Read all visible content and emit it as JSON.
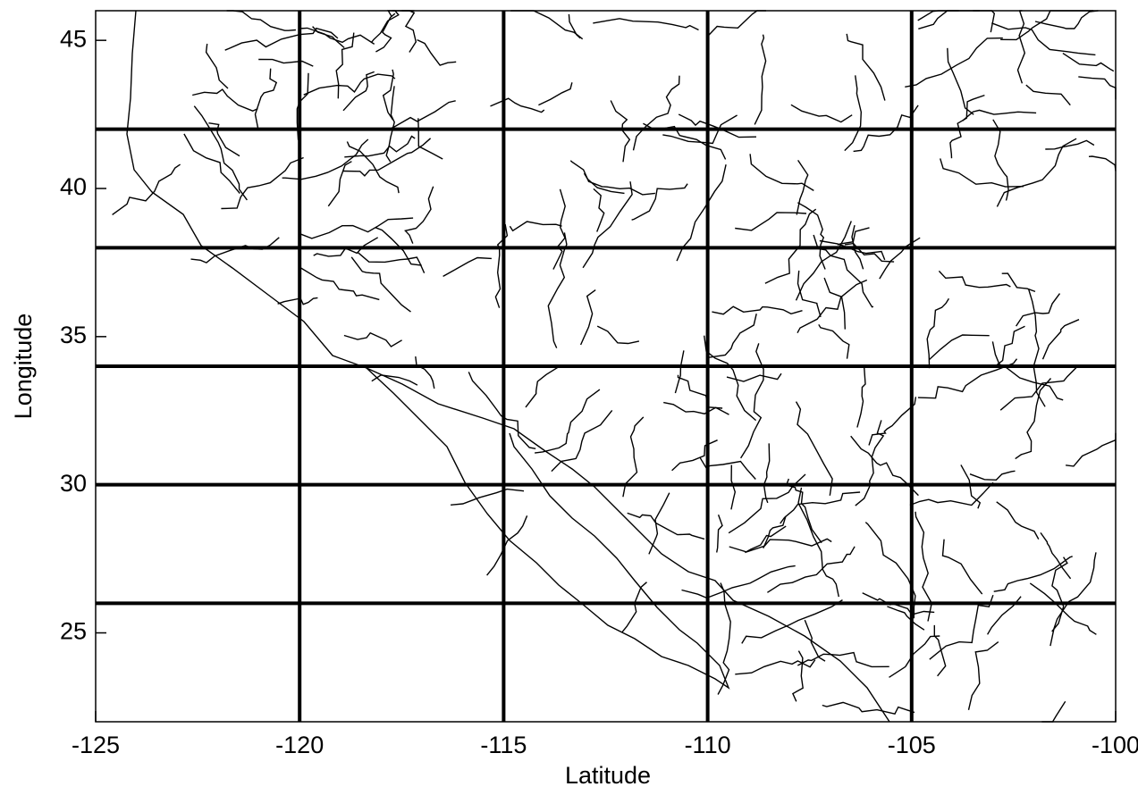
{
  "map": {
    "x_label": "Latitude",
    "y_label": "Longitude",
    "xlim": [
      -125,
      -100
    ],
    "ylim": [
      22,
      46
    ],
    "xticks": [
      -125,
      -120,
      -115,
      -110,
      -105,
      -100
    ],
    "yticks": [
      25,
      30,
      35,
      40,
      45
    ],
    "grid_x": [
      -120,
      -115,
      -110,
      -105
    ],
    "grid_y": [
      26,
      30,
      34,
      38,
      42
    ]
  }
}
